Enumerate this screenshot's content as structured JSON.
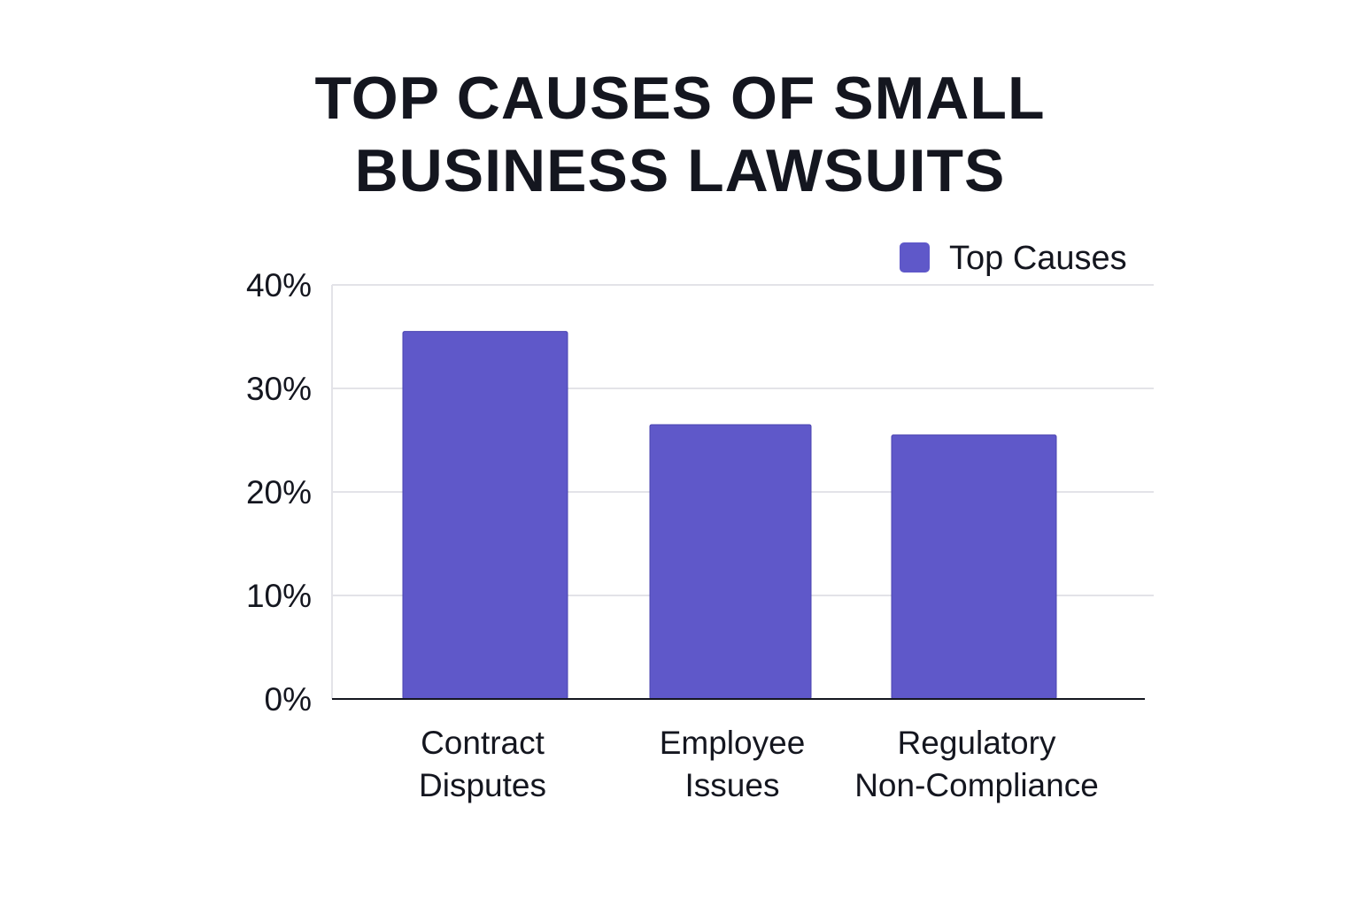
{
  "chart_data": {
    "type": "bar",
    "title_lines": [
      "TOP CAUSES OF SMALL",
      "BUSINESS LAWSUITS"
    ],
    "categories": [
      [
        "Contract",
        "Disputes"
      ],
      [
        "Employee",
        "Issues"
      ],
      [
        "Regulatory",
        "Non-Compliance"
      ]
    ],
    "series": [
      {
        "name": "Top Causes",
        "values": [
          35.5,
          26.5,
          25.5
        ],
        "color": "#5f58c9"
      }
    ],
    "y_ticks": [
      "0%",
      "10%",
      "20%",
      "30%",
      "40%"
    ],
    "ylim": [
      0,
      40
    ],
    "grid": true,
    "legend_position": "top-right"
  }
}
